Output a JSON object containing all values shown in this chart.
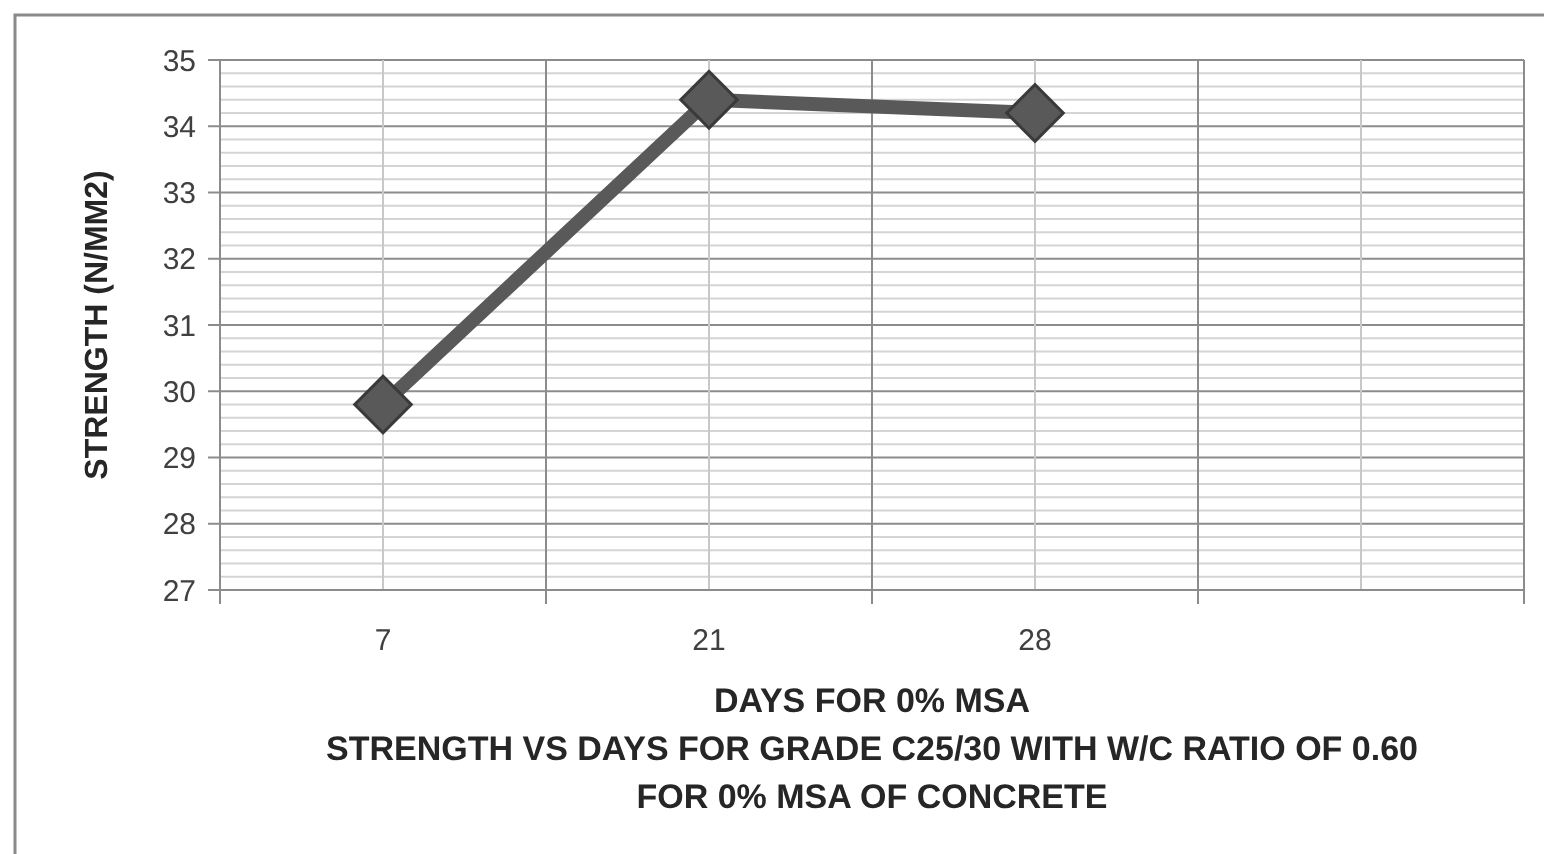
{
  "chart_data": {
    "type": "line",
    "title": "STRENGTH VS DAYS FOR GRADE C25/30 WITH W/C RATIO OF 0.60 FOR 0% MSA OF CONCRETE",
    "xlabel": "DAYS FOR 0% MSA",
    "ylabel": "STRENGTH (N/MM2)",
    "categories": [
      "7",
      "21",
      "28",
      null
    ],
    "values": [
      29.8,
      34.4,
      34.2,
      null
    ],
    "color": "#595959",
    "ylim": [
      27,
      35
    ],
    "yticks": [
      27,
      28,
      29,
      30,
      31,
      32,
      33,
      34,
      35
    ],
    "grid": true,
    "marker": "diamond",
    "line_style": "solid"
  }
}
